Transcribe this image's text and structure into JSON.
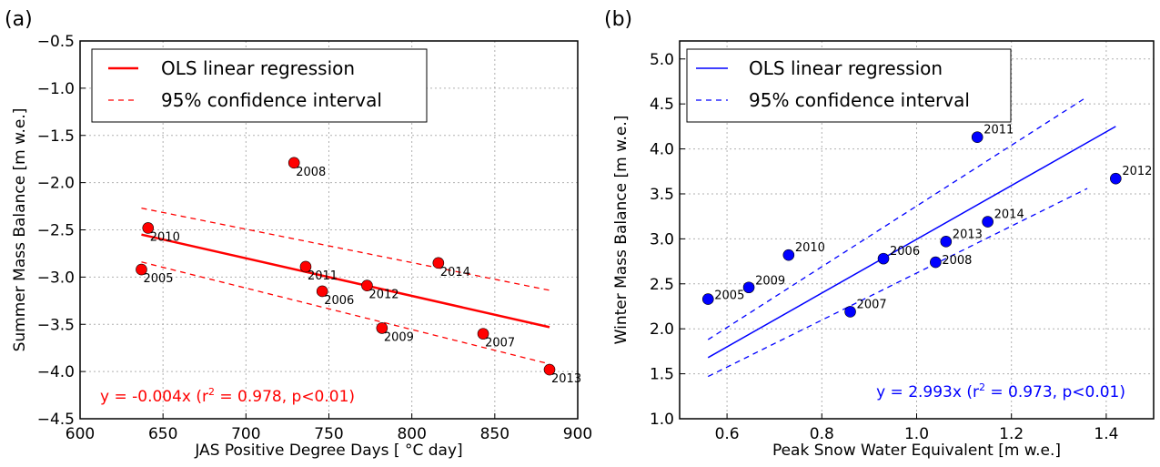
{
  "chart_data": [
    {
      "panel": "(a)",
      "type": "scatter",
      "xlabel": "JAS Positive Degree Days [ °C day]",
      "ylabel": "Summer Mass Balance [m w.e.]",
      "xlim": [
        600,
        900
      ],
      "ylim": [
        -4.5,
        -0.5
      ],
      "xticks": [
        600,
        650,
        700,
        750,
        800,
        850,
        900
      ],
      "yticks": [
        -4.5,
        -4.0,
        -3.5,
        -3.0,
        -2.5,
        -2.0,
        -1.5,
        -1.0,
        -0.5
      ],
      "xtick_labels": [
        "600",
        "650",
        "700",
        "750",
        "800",
        "850",
        "900"
      ],
      "ytick_labels": [
        "−4.5",
        "−4.0",
        "−3.5",
        "−3.0",
        "−2.5",
        "−2.0",
        "−1.5",
        "−1.0",
        "−0.5"
      ],
      "grid": true,
      "color": "#ff0000",
      "points": [
        {
          "label": "2005",
          "x": 637,
          "y": -2.92
        },
        {
          "label": "2010",
          "x": 641,
          "y": -2.48
        },
        {
          "label": "2008",
          "x": 729,
          "y": -1.79
        },
        {
          "label": "2011",
          "x": 736,
          "y": -2.89
        },
        {
          "label": "2006",
          "x": 746,
          "y": -3.15
        },
        {
          "label": "2012",
          "x": 773,
          "y": -3.09
        },
        {
          "label": "2009",
          "x": 782,
          "y": -3.54
        },
        {
          "label": "2014",
          "x": 816,
          "y": -2.85
        },
        {
          "label": "2007",
          "x": 843,
          "y": -3.6
        },
        {
          "label": "2013",
          "x": 883,
          "y": -3.98
        }
      ],
      "fit_line": {
        "x": [
          637,
          883
        ],
        "y": [
          -2.55,
          -3.53
        ]
      },
      "ci_upper": {
        "x": [
          637,
          883
        ],
        "y": [
          -2.27,
          -3.14
        ]
      },
      "ci_lower": {
        "x": [
          637,
          883
        ],
        "y": [
          -2.84,
          -3.92
        ]
      },
      "legend": {
        "placement": "top",
        "entries": [
          "OLS linear regression",
          "95% confidence interval"
        ]
      },
      "equation": {
        "prefix": "y = -0.004x (r",
        "sup": "2",
        "suffix": " = 0.978, p<0.01)"
      }
    },
    {
      "panel": "(b)",
      "type": "scatter",
      "xlabel": "Peak Snow Water Equivalent [m w.e.]",
      "ylabel": "Winter Mass Balance [m w.e.]",
      "xlim": [
        0.5,
        1.5
      ],
      "ylim": [
        1.0,
        5.2
      ],
      "xticks": [
        0.6,
        0.8,
        1.0,
        1.2,
        1.4
      ],
      "yticks": [
        1.0,
        1.5,
        2.0,
        2.5,
        3.0,
        3.5,
        4.0,
        4.5,
        5.0
      ],
      "xtick_labels": [
        "0.6",
        "0.8",
        "1.0",
        "1.2",
        "1.4"
      ],
      "ytick_labels": [
        "1.0",
        "1.5",
        "2.0",
        "2.5",
        "3.0",
        "3.5",
        "4.0",
        "4.5",
        "5.0"
      ],
      "grid": true,
      "color": "#0000ff",
      "points": [
        {
          "label": "2005",
          "x": 0.56,
          "y": 2.33
        },
        {
          "label": "2009",
          "x": 0.646,
          "y": 2.46
        },
        {
          "label": "2010",
          "x": 0.73,
          "y": 2.82
        },
        {
          "label": "2007",
          "x": 0.86,
          "y": 2.19
        },
        {
          "label": "2006",
          "x": 0.93,
          "y": 2.78
        },
        {
          "label": "2008",
          "x": 1.04,
          "y": 2.74
        },
        {
          "label": "2013",
          "x": 1.062,
          "y": 2.97
        },
        {
          "label": "2011",
          "x": 1.128,
          "y": 4.13
        },
        {
          "label": "2014",
          "x": 1.15,
          "y": 3.19
        },
        {
          "label": "2012",
          "x": 1.42,
          "y": 3.67
        }
      ],
      "fit_line": {
        "x": [
          0.56,
          1.42
        ],
        "y": [
          1.68,
          4.25
        ]
      },
      "ci_upper": {
        "x": [
          0.56,
          1.36
        ],
        "y": [
          1.88,
          4.58
        ]
      },
      "ci_lower": {
        "x": [
          0.56,
          1.36
        ],
        "y": [
          1.47,
          3.56
        ]
      },
      "legend": {
        "placement": "top-left",
        "entries": [
          "OLS linear regression",
          "95% confidence interval"
        ]
      },
      "equation": {
        "prefix": "y = 2.993x (r",
        "sup": "2",
        "suffix": " = 0.973, p<0.01)"
      }
    }
  ]
}
